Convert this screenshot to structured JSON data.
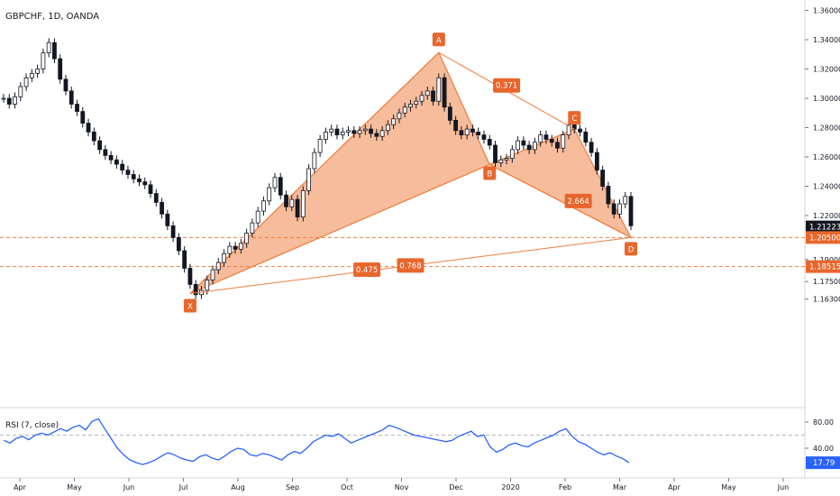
{
  "chart_data": [
    {
      "type": "candlestick",
      "title": "GBPCHF, 1D, OANDA",
      "x_tick_labels": [
        "Apr",
        "May",
        "Jun",
        "Jul",
        "Aug",
        "Sep",
        "Oct",
        "Nov",
        "Dec",
        "2020",
        "Feb",
        "Mar",
        "Apr",
        "May",
        "Jun"
      ],
      "y_tick_labels": [
        "1.36000",
        "1.34000",
        "1.32000",
        "1.30000",
        "1.28000",
        "1.26000",
        "1.24000",
        "1.22000",
        "1.19000",
        "1.17500",
        "1.16300"
      ],
      "ylim": [
        1.155,
        1.365
      ],
      "series": [
        {
          "values": [
            1.3,
            1.296,
            1.301,
            1.308,
            1.314,
            1.317,
            1.32,
            1.331,
            1.338,
            1.327,
            1.313,
            1.305,
            1.296,
            1.291,
            1.283,
            1.277,
            1.271,
            1.265,
            1.261,
            1.258,
            1.255,
            1.251,
            1.248,
            1.245,
            1.243,
            1.241,
            1.235,
            1.229,
            1.221,
            1.213,
            1.205,
            1.196,
            1.184,
            1.173,
            1.166,
            1.169,
            1.176,
            1.183,
            1.188,
            1.194,
            1.199,
            1.197,
            1.201,
            1.208,
            1.215,
            1.223,
            1.23,
            1.239,
            1.246,
            1.234,
            1.226,
            1.231,
            1.219,
            1.237,
            1.252,
            1.263,
            1.272,
            1.277,
            1.279,
            1.275,
            1.277,
            1.278,
            1.276,
            1.278,
            1.279,
            1.276,
            1.274,
            1.278,
            1.282,
            1.286,
            1.29,
            1.294,
            1.296,
            1.298,
            1.302,
            1.305,
            1.298,
            1.314,
            1.294,
            1.285,
            1.278,
            1.275,
            1.279,
            1.277,
            1.275,
            1.272,
            1.268,
            1.256,
            1.258,
            1.259,
            1.265,
            1.271,
            1.268,
            1.265,
            1.27,
            1.275,
            1.272,
            1.27,
            1.266,
            1.275,
            1.282,
            1.279,
            1.277,
            1.27,
            1.263,
            1.251,
            1.24,
            1.228,
            1.221,
            1.228,
            1.233,
            1.213
          ]
        }
      ],
      "harmonic_pattern": {
        "points": [
          {
            "label": "X",
            "value": 1.1668
          },
          {
            "label": "A",
            "value": 1.3312
          },
          {
            "label": "B",
            "value": 1.2548
          },
          {
            "label": "C",
            "value": 1.279
          },
          {
            "label": "D",
            "value": 1.205
          }
        ],
        "ratios": [
          "0.371",
          "0.475",
          "2.664",
          "0.768"
        ]
      },
      "horizontal_lines": [
        1.205,
        1.18515
      ],
      "price_tags": [
        {
          "text": "1.21223",
          "value": 1.21223,
          "bg": "#131722"
        },
        {
          "text": "1.20500",
          "value": 1.205,
          "bg": "#e8662c"
        },
        {
          "text": "1.18515",
          "value": 1.18515,
          "bg": "#e8662c"
        }
      ],
      "colors": {
        "line_orange": "#f07c3c",
        "fill_orange": "#f5b089",
        "candle": "#131722",
        "tag_orange": "#e8662c"
      }
    },
    {
      "type": "line",
      "title": "RSI (7, close)",
      "y_tick_labels": [
        "80.00",
        "40.00"
      ],
      "ylim": [
        5,
        95
      ],
      "reference_line": 60,
      "current_value_text": "17.79",
      "series": [
        {
          "values": [
            52,
            48,
            55,
            58,
            53,
            60,
            63,
            60,
            65,
            70,
            66,
            72,
            75,
            68,
            81,
            85,
            70,
            55,
            40,
            30,
            22,
            18,
            15,
            18,
            22,
            28,
            33,
            30,
            25,
            22,
            20,
            27,
            30,
            25,
            22,
            28,
            35,
            40,
            38,
            30,
            28,
            32,
            30,
            26,
            22,
            30,
            35,
            32,
            40,
            50,
            55,
            60,
            58,
            62,
            55,
            48,
            52,
            56,
            60,
            64,
            68,
            75,
            72,
            68,
            64,
            60,
            58,
            56,
            54,
            52,
            50,
            52,
            58,
            62,
            66,
            58,
            60,
            42,
            34,
            38,
            45,
            48,
            44,
            42,
            48,
            52,
            56,
            60,
            66,
            70,
            58,
            50,
            46,
            40,
            34,
            30,
            33,
            28,
            24,
            17.79
          ],
          "color": "#2962ff"
        }
      ]
    }
  ]
}
